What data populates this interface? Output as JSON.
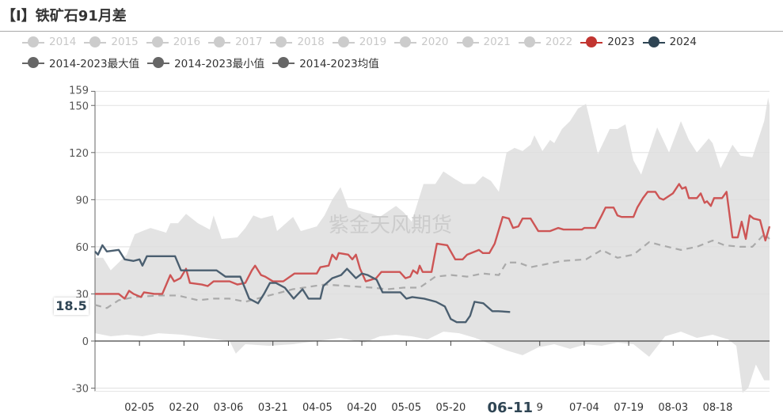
{
  "title": "【I】铁矿石91月差",
  "watermark": "紫金天风期货",
  "legend": {
    "row1": [
      {
        "label": "2014",
        "color": "#cccccc"
      },
      {
        "label": "2015",
        "color": "#cccccc"
      },
      {
        "label": "2016",
        "color": "#cccccc"
      },
      {
        "label": "2017",
        "color": "#cccccc"
      },
      {
        "label": "2018",
        "color": "#cccccc"
      },
      {
        "label": "2019",
        "color": "#cccccc"
      },
      {
        "label": "2020",
        "color": "#cccccc"
      },
      {
        "label": "2021",
        "color": "#cccccc"
      },
      {
        "label": "2022",
        "color": "#cccccc"
      },
      {
        "label": "2023",
        "color": "#c23531"
      },
      {
        "label": "2024",
        "color": "#2f4554"
      }
    ],
    "row2": [
      {
        "label": "2014-2023最大值",
        "color": "#666666"
      },
      {
        "label": "2014-2023最小值",
        "color": "#666666"
      },
      {
        "label": "2014-2023均值",
        "color": "#666666"
      }
    ]
  },
  "crosshair": {
    "y_value_label": "18.5",
    "x_label": "06-11",
    "x_day": 140
  },
  "chart_data": {
    "type": "line",
    "title": "【I】铁矿石91月差",
    "xlabel": "",
    "ylabel": "",
    "xlim": [
      0,
      227.5
    ],
    "ylim": [
      -30,
      159
    ],
    "y_ticks": [
      -30,
      0,
      30,
      60,
      90,
      120,
      150,
      159
    ],
    "x_ticks": [
      {
        "day": 15,
        "label": "02-05"
      },
      {
        "day": 30,
        "label": "02-20"
      },
      {
        "day": 45,
        "label": "03-06"
      },
      {
        "day": 60,
        "label": "03-21"
      },
      {
        "day": 75,
        "label": "04-05"
      },
      {
        "day": 90,
        "label": "04-20"
      },
      {
        "day": 105,
        "label": "05-05"
      },
      {
        "day": 120,
        "label": "05-20"
      },
      {
        "day": 150,
        "label": "9"
      },
      {
        "day": 165,
        "label": "07-04"
      },
      {
        "day": 180,
        "label": "07-19"
      },
      {
        "day": 195,
        "label": "08-03"
      },
      {
        "day": 210,
        "label": "08-18"
      }
    ],
    "grid": true,
    "band_max": [
      [
        0,
        53
      ],
      [
        2.7,
        53
      ],
      [
        5.3,
        45
      ],
      [
        10.7,
        55
      ],
      [
        13.4,
        68
      ],
      [
        16,
        70
      ],
      [
        18.7,
        72
      ],
      [
        24,
        69
      ],
      [
        25.4,
        75
      ],
      [
        28,
        75
      ],
      [
        30.7,
        81
      ],
      [
        34.7,
        75
      ],
      [
        38.7,
        71
      ],
      [
        40,
        80
      ],
      [
        42.7,
        65
      ],
      [
        48,
        66
      ],
      [
        50.7,
        72
      ],
      [
        53.4,
        80
      ],
      [
        56,
        78
      ],
      [
        60,
        80
      ],
      [
        61.4,
        70
      ],
      [
        66.8,
        79
      ],
      [
        69.4,
        70
      ],
      [
        74.8,
        73
      ],
      [
        77.4,
        80
      ],
      [
        80,
        90
      ],
      [
        82.8,
        98
      ],
      [
        85.4,
        85
      ],
      [
        90.8,
        82
      ],
      [
        93.4,
        81
      ],
      [
        96.1,
        79
      ],
      [
        101.5,
        86
      ],
      [
        104.1,
        82
      ],
      [
        106.8,
        76
      ],
      [
        110.8,
        100
      ],
      [
        114.8,
        100
      ],
      [
        117.5,
        108
      ],
      [
        121.5,
        103
      ],
      [
        124.2,
        100
      ],
      [
        128.2,
        100
      ],
      [
        130.8,
        105
      ],
      [
        133.5,
        102
      ],
      [
        136.2,
        95
      ],
      [
        138.8,
        120
      ],
      [
        141.5,
        123
      ],
      [
        144.2,
        121
      ],
      [
        146.9,
        125
      ],
      [
        148.2,
        131
      ],
      [
        150.9,
        121
      ],
      [
        153.5,
        128
      ],
      [
        154.9,
        126
      ],
      [
        157.5,
        135
      ],
      [
        160.2,
        140
      ],
      [
        162.9,
        148
      ],
      [
        165.6,
        151
      ],
      [
        166.9,
        141
      ],
      [
        169.6,
        119
      ],
      [
        173.6,
        135
      ],
      [
        176.2,
        135
      ],
      [
        178.9,
        138
      ],
      [
        181.6,
        115
      ],
      [
        184.2,
        106
      ],
      [
        189.6,
        136
      ],
      [
        193.6,
        120
      ],
      [
        197.6,
        140
      ],
      [
        200.3,
        128
      ],
      [
        203,
        120
      ],
      [
        207,
        129
      ],
      [
        208.3,
        126
      ],
      [
        211,
        110
      ],
      [
        215,
        125
      ],
      [
        217.7,
        118
      ],
      [
        221.7,
        117
      ],
      [
        225.7,
        140
      ],
      [
        227,
        155
      ],
      [
        227.5,
        150
      ]
    ],
    "band_min": [
      [
        0,
        5
      ],
      [
        5.3,
        3
      ],
      [
        10.7,
        4
      ],
      [
        16,
        3
      ],
      [
        21.4,
        5
      ],
      [
        29.4,
        4
      ],
      [
        37.4,
        2
      ],
      [
        45.4,
        0
      ],
      [
        47.5,
        -8
      ],
      [
        50.7,
        -2
      ],
      [
        58.7,
        -3
      ],
      [
        66.8,
        -2
      ],
      [
        74.8,
        0
      ],
      [
        82.8,
        2
      ],
      [
        90.8,
        -1
      ],
      [
        96.1,
        3
      ],
      [
        101.5,
        4
      ],
      [
        106.8,
        3
      ],
      [
        112.1,
        1
      ],
      [
        117.5,
        6
      ],
      [
        122.8,
        5
      ],
      [
        128.2,
        2
      ],
      [
        133.5,
        -2
      ],
      [
        138.8,
        -6
      ],
      [
        144.2,
        -9
      ],
      [
        149.5,
        -4
      ],
      [
        154.9,
        -2
      ],
      [
        160.2,
        -5
      ],
      [
        165.6,
        -2
      ],
      [
        170.9,
        -3
      ],
      [
        176.2,
        -1
      ],
      [
        181.6,
        -2
      ],
      [
        186.9,
        -10
      ],
      [
        192.3,
        3
      ],
      [
        197.6,
        6
      ],
      [
        203,
        2
      ],
      [
        208.3,
        4
      ],
      [
        213.6,
        1
      ],
      [
        216.3,
        -3
      ],
      [
        218.4,
        -33
      ],
      [
        220.3,
        -30
      ],
      [
        222.9,
        -15
      ],
      [
        225.7,
        -25
      ],
      [
        227.5,
        -25
      ]
    ],
    "series": [
      {
        "name": "2014-2023均值",
        "color": "#aaaaaa",
        "dashed": true,
        "points": [
          [
            0,
            23
          ],
          [
            4,
            21
          ],
          [
            8,
            26
          ],
          [
            13.4,
            28
          ],
          [
            21.4,
            29
          ],
          [
            28,
            29
          ],
          [
            34.7,
            26
          ],
          [
            40,
            27
          ],
          [
            45.4,
            27
          ],
          [
            50.7,
            25
          ],
          [
            58.7,
            29
          ],
          [
            66.8,
            33
          ],
          [
            77.4,
            36
          ],
          [
            85.4,
            35
          ],
          [
            93.4,
            34
          ],
          [
            98.8,
            33
          ],
          [
            104.1,
            34
          ],
          [
            109.5,
            34
          ],
          [
            114.8,
            41
          ],
          [
            120.2,
            42
          ],
          [
            125.5,
            41
          ],
          [
            130.8,
            43
          ],
          [
            136.2,
            42
          ],
          [
            138.8,
            50
          ],
          [
            142.8,
            50
          ],
          [
            146.9,
            47
          ],
          [
            152.2,
            49
          ],
          [
            157.5,
            51
          ],
          [
            165.6,
            52
          ],
          [
            170.9,
            58
          ],
          [
            176.2,
            53
          ],
          [
            181.6,
            55
          ],
          [
            186.9,
            63
          ],
          [
            190.9,
            61
          ],
          [
            197.6,
            58
          ],
          [
            203,
            60
          ],
          [
            208.3,
            64
          ],
          [
            212.3,
            61
          ],
          [
            217.7,
            60
          ],
          [
            221.7,
            60
          ],
          [
            225.7,
            68
          ],
          [
            227.5,
            65
          ]
        ]
      },
      {
        "name": "2023",
        "color": "#cd5555",
        "dashed": false,
        "points": [
          [
            0,
            30
          ],
          [
            8,
            30
          ],
          [
            10,
            27
          ],
          [
            11.5,
            32
          ],
          [
            13,
            30
          ],
          [
            15.5,
            28
          ],
          [
            16.5,
            31
          ],
          [
            20,
            30
          ],
          [
            22.7,
            30
          ],
          [
            25.4,
            42
          ],
          [
            26.7,
            38
          ],
          [
            28.8,
            40
          ],
          [
            30.7,
            46
          ],
          [
            32,
            37
          ],
          [
            36,
            36
          ],
          [
            38,
            35
          ],
          [
            40,
            38
          ],
          [
            45.4,
            38
          ],
          [
            48,
            36
          ],
          [
            50.7,
            37
          ],
          [
            52.9,
            45
          ],
          [
            54,
            48
          ],
          [
            56,
            42
          ],
          [
            57.4,
            41
          ],
          [
            60,
            38
          ],
          [
            63.5,
            38
          ],
          [
            67.3,
            43
          ],
          [
            74.8,
            43
          ],
          [
            76,
            47
          ],
          [
            78.8,
            48
          ],
          [
            80,
            55
          ],
          [
            81.4,
            52
          ],
          [
            82.2,
            56
          ],
          [
            85.4,
            55
          ],
          [
            86.8,
            52
          ],
          [
            88,
            55
          ],
          [
            89.4,
            46
          ],
          [
            91.3,
            38
          ],
          [
            94.8,
            40
          ],
          [
            96.6,
            44
          ],
          [
            102.8,
            44
          ],
          [
            104.7,
            40
          ],
          [
            106.3,
            41
          ],
          [
            107.3,
            45
          ],
          [
            108.7,
            43
          ],
          [
            109.5,
            48
          ],
          [
            110.5,
            44
          ],
          [
            113.5,
            44
          ],
          [
            115.3,
            62
          ],
          [
            118.8,
            61
          ],
          [
            121.5,
            52
          ],
          [
            124,
            52
          ],
          [
            125.5,
            55
          ],
          [
            129.5,
            58
          ],
          [
            130.8,
            56
          ],
          [
            133,
            56
          ],
          [
            134.8,
            62
          ],
          [
            137.5,
            79
          ],
          [
            139.6,
            78
          ],
          [
            141,
            72
          ],
          [
            142.8,
            73
          ],
          [
            144.2,
            78
          ],
          [
            146.9,
            78
          ],
          [
            149.5,
            70
          ],
          [
            153.5,
            70
          ],
          [
            156.2,
            72
          ],
          [
            158,
            71
          ],
          [
            164.2,
            71
          ],
          [
            165,
            72
          ],
          [
            168.7,
            72
          ],
          [
            170.9,
            80
          ],
          [
            172.2,
            85
          ],
          [
            174.9,
            85
          ],
          [
            176.2,
            80
          ],
          [
            177.6,
            79
          ],
          [
            181.6,
            79
          ],
          [
            182.9,
            85
          ],
          [
            184.8,
            91
          ],
          [
            186.4,
            95
          ],
          [
            189,
            95
          ],
          [
            190.4,
            91
          ],
          [
            191.7,
            90
          ],
          [
            194.9,
            94
          ],
          [
            197,
            100
          ],
          [
            198,
            97
          ],
          [
            199.2,
            98
          ],
          [
            200.3,
            91
          ],
          [
            203,
            91
          ],
          [
            204.3,
            94
          ],
          [
            205.6,
            88
          ],
          [
            206.4,
            89
          ],
          [
            207.7,
            86
          ],
          [
            208.8,
            91
          ],
          [
            211.5,
            91
          ],
          [
            213,
            95
          ],
          [
            215,
            66
          ],
          [
            216.8,
            66
          ],
          [
            218.1,
            76
          ],
          [
            219.5,
            65
          ],
          [
            220.8,
            80
          ],
          [
            222.1,
            78
          ],
          [
            224.3,
            77
          ],
          [
            226.1,
            64
          ],
          [
            227.5,
            73
          ]
        ]
      },
      {
        "name": "2024",
        "color": "#4b5f70",
        "dashed": false,
        "points": [
          [
            0,
            57
          ],
          [
            1,
            55
          ],
          [
            2.5,
            61
          ],
          [
            4,
            57
          ],
          [
            8,
            58
          ],
          [
            10,
            52
          ],
          [
            13,
            51
          ],
          [
            15,
            52
          ],
          [
            16,
            48
          ],
          [
            17.5,
            54
          ],
          [
            27,
            54
          ],
          [
            29,
            45
          ],
          [
            32,
            45
          ],
          [
            41,
            45
          ],
          [
            44,
            41
          ],
          [
            49,
            41
          ],
          [
            52,
            27
          ],
          [
            55,
            24
          ],
          [
            57,
            30
          ],
          [
            59,
            37
          ],
          [
            61,
            37
          ],
          [
            64,
            34
          ],
          [
            67,
            27
          ],
          [
            70,
            33
          ],
          [
            72,
            27
          ],
          [
            76,
            27
          ],
          [
            77,
            35
          ],
          [
            80,
            40
          ],
          [
            83,
            42
          ],
          [
            85,
            46
          ],
          [
            88,
            40
          ],
          [
            90,
            43
          ],
          [
            92,
            42
          ],
          [
            95,
            39
          ],
          [
            97,
            31
          ],
          [
            103,
            31
          ],
          [
            105,
            27
          ],
          [
            107,
            28
          ],
          [
            111,
            27
          ],
          [
            113,
            26
          ],
          [
            115,
            25
          ],
          [
            118,
            22
          ],
          [
            120,
            14
          ],
          [
            122,
            12
          ],
          [
            125,
            12
          ],
          [
            126.5,
            16
          ],
          [
            128,
            25
          ],
          [
            131,
            24
          ],
          [
            134,
            19
          ],
          [
            136,
            19
          ],
          [
            140,
            18.5
          ]
        ]
      }
    ]
  }
}
